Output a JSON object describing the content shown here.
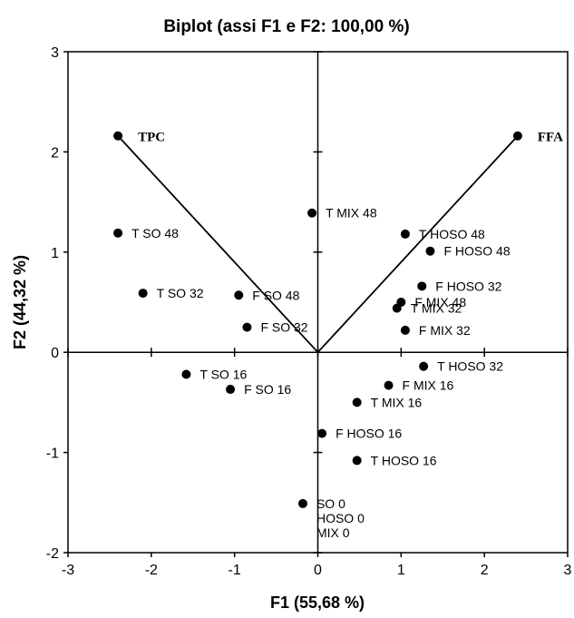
{
  "chart_data": {
    "type": "scatter",
    "title": "Biplot (assi F1 e F2: 100,00 %)",
    "xlabel": "F1 (55,68 %)",
    "ylabel": "F2 (44,32 %)",
    "xlim": [
      -3,
      3
    ],
    "ylim": [
      -2,
      3
    ],
    "xticks": [
      "-3",
      "-2",
      "-1",
      "0",
      "1",
      "2",
      "3"
    ],
    "yticks": [
      "-2",
      "-1",
      "0",
      "1",
      "2",
      "3"
    ],
    "grid": false,
    "legend": "none",
    "marker_color": "#000000",
    "vectors": [
      {
        "label": "TPC",
        "x": -2.4,
        "y": 2.16
      },
      {
        "label": "FFA",
        "x": 2.4,
        "y": 2.16
      }
    ],
    "points": [
      {
        "label": "T MIX 48",
        "x": -0.07,
        "y": 1.39
      },
      {
        "label": "T SO 48",
        "x": -2.4,
        "y": 1.19
      },
      {
        "label": "T HOSO 48",
        "x": 1.05,
        "y": 1.18
      },
      {
        "label": "F HOSO 48",
        "x": 1.35,
        "y": 1.01
      },
      {
        "label": "F HOSO 32",
        "x": 1.25,
        "y": 0.66
      },
      {
        "label": "T SO 32",
        "x": -2.1,
        "y": 0.59
      },
      {
        "label": "F SO 48",
        "x": -0.95,
        "y": 0.57
      },
      {
        "label": "F MIX 48",
        "x": 1.0,
        "y": 0.5
      },
      {
        "label": "T MIX 32",
        "x": 0.95,
        "y": 0.44
      },
      {
        "label": "F SO 32",
        "x": -0.85,
        "y": 0.25
      },
      {
        "label": "F MIX 32",
        "x": 1.05,
        "y": 0.22
      },
      {
        "label": "T HOSO 32",
        "x": 1.27,
        "y": -0.14
      },
      {
        "label": "T SO 16",
        "x": -1.58,
        "y": -0.22
      },
      {
        "label": "F MIX 16",
        "x": 0.85,
        "y": -0.33
      },
      {
        "label": "F SO 16",
        "x": -1.05,
        "y": -0.37
      },
      {
        "label": "T MIX 16",
        "x": 0.47,
        "y": -0.5
      },
      {
        "label": "F HOSO 16",
        "x": 0.05,
        "y": -0.81
      },
      {
        "label": "T HOSO 16",
        "x": 0.47,
        "y": -1.08
      },
      {
        "label": "SO 0",
        "x": -0.18,
        "y": -1.51
      }
    ],
    "stacked_labels": [
      "HOSO 0",
      "MIX 0"
    ]
  }
}
